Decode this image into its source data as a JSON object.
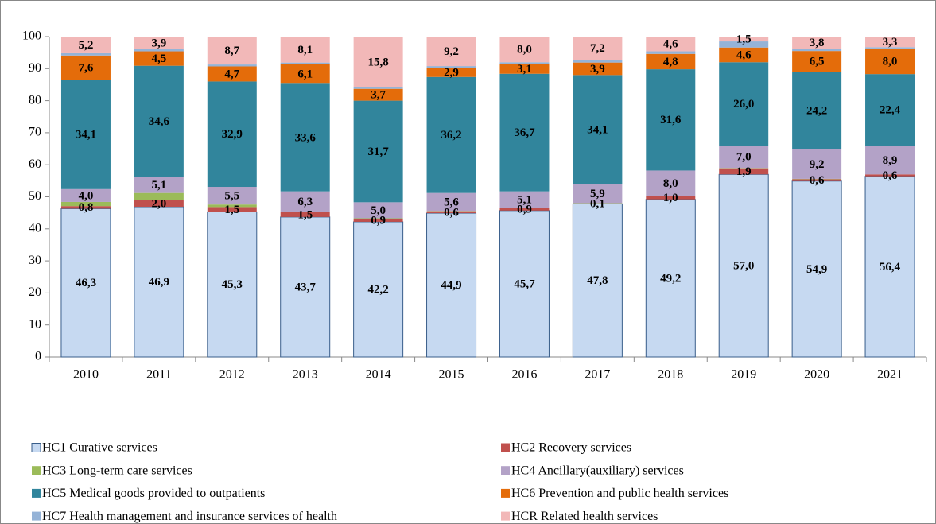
{
  "chart_data": {
    "type": "bar",
    "stacked": true,
    "categories": [
      "2010",
      "2011",
      "2012",
      "2013",
      "2014",
      "2015",
      "2016",
      "2017",
      "2018",
      "2019",
      "2020",
      "2021"
    ],
    "ylim": [
      0,
      100
    ],
    "yticks": [
      0,
      10,
      20,
      30,
      40,
      50,
      60,
      70,
      80,
      90,
      100
    ],
    "grid": false,
    "legend": "bottom",
    "series": [
      {
        "name": "HC1 Curative services",
        "color": "#c6d9f1",
        "edge_color": "#385d8a",
        "values": [
          46.3,
          46.9,
          45.3,
          43.7,
          42.2,
          44.9,
          45.7,
          47.8,
          49.2,
          57.0,
          54.9,
          56.4
        ],
        "value_labels": [
          "46,3",
          "46,9",
          "45,3",
          "43,7",
          "42,2",
          "44,9",
          "45,7",
          "47,8",
          "49,2",
          "57,0",
          "54,9",
          "56,4"
        ]
      },
      {
        "name": "HC2 Recovery services",
        "color": "#c0504d",
        "values": [
          0.8,
          2.0,
          1.5,
          1.5,
          0.9,
          0.6,
          0.9,
          0.1,
          1.0,
          1.9,
          0.6,
          0.6
        ],
        "value_labels": [
          "0,8",
          "2,0",
          "1,5",
          "1,5",
          "0,9",
          "0,6",
          "0,9",
          "0,1",
          "1,0",
          "1,9",
          "0,6",
          "0,6"
        ]
      },
      {
        "name": "HC3 Long-term care services",
        "color": "#9bbb59",
        "values": [
          1.3,
          2.3,
          0.8,
          0.2,
          0.2,
          0.1,
          0.0,
          0.1,
          0.0,
          0.1,
          0.1,
          0.0
        ]
      },
      {
        "name": "HC4 Ancillary(auxiliary) services",
        "color": "#b3a2c7",
        "values": [
          4.0,
          5.1,
          5.5,
          6.3,
          5.0,
          5.6,
          5.1,
          5.9,
          8.0,
          7.0,
          9.2,
          8.9
        ],
        "value_labels": [
          "4,0",
          "5,1",
          "5,5",
          "6,3",
          "5,0",
          "5,6",
          "5,1",
          "5,9",
          "8,0",
          "7,0",
          "9,2",
          "8,9"
        ]
      },
      {
        "name": "HC5 Medical goods provided to outpatients",
        "color": "#31859c",
        "values": [
          34.1,
          34.6,
          32.9,
          33.6,
          31.7,
          36.2,
          36.7,
          34.1,
          31.6,
          26.0,
          24.2,
          22.4
        ],
        "value_labels": [
          "34,1",
          "34,6",
          "32,9",
          "33,6",
          "31,7",
          "36,2",
          "36,7",
          "34,1",
          "31,6",
          "26,0",
          "24,2",
          "22,4"
        ]
      },
      {
        "name": "HC6 Prevention and public health services",
        "color": "#e46c0a",
        "values": [
          7.6,
          4.5,
          4.7,
          6.1,
          3.7,
          2.9,
          3.1,
          3.9,
          4.8,
          4.6,
          6.5,
          8.0
        ],
        "value_labels": [
          "7,6",
          "4,5",
          "4,7",
          "6,1",
          "3,7",
          "2,9",
          "3,1",
          "3,9",
          "4,8",
          "4,6",
          "6,5",
          "8,0"
        ]
      },
      {
        "name": "HC7 Health management and insurance services of health",
        "color": "#95b3d7",
        "values": [
          0.7,
          0.7,
          0.6,
          0.5,
          0.5,
          0.5,
          0.5,
          0.9,
          0.8,
          1.9,
          0.7,
          0.4
        ]
      },
      {
        "name": "HCR Related health services",
        "color": "#f2b8b8",
        "values": [
          5.2,
          3.9,
          8.7,
          8.1,
          15.8,
          9.2,
          8.0,
          7.2,
          4.6,
          1.5,
          3.8,
          3.3
        ],
        "value_labels": [
          "5,2",
          "3,9",
          "8,7",
          "8,1",
          "15,8",
          "9,2",
          "8,0",
          "7,2",
          "4,6",
          "1,5",
          "3,8",
          "3,3"
        ]
      }
    ]
  }
}
